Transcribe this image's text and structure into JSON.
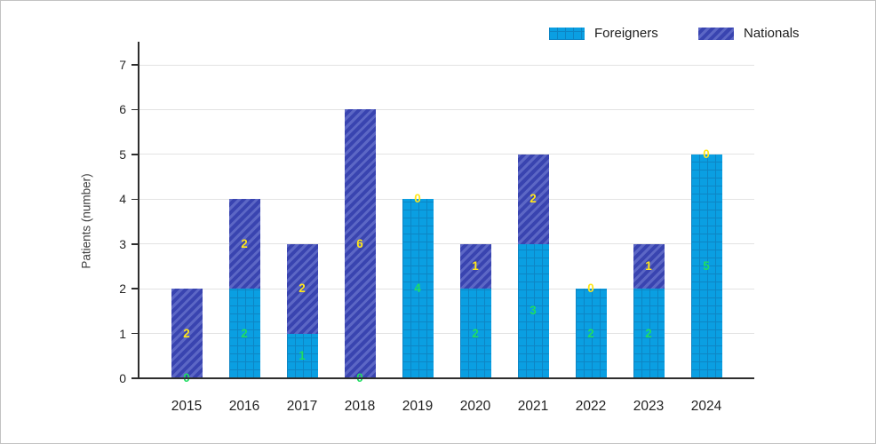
{
  "legend": {
    "items": [
      {
        "label": "Foreigners"
      },
      {
        "label": "Nationals"
      }
    ]
  },
  "chart_data": {
    "type": "bar",
    "stacked": true,
    "title": "",
    "xlabel": "",
    "ylabel": "Patients (number)",
    "categories": [
      "2015",
      "2016",
      "2017",
      "2018",
      "2019",
      "2020",
      "2021",
      "2022",
      "2023",
      "2024"
    ],
    "series": [
      {
        "name": "Foreigners",
        "values": [
          0,
          2,
          1,
          0,
          4,
          2,
          3,
          2,
          2,
          5
        ],
        "color": "#0a9fe2",
        "pattern": "grid",
        "pattern_color": "#0d85c4",
        "value_label_color": "#1fdd62"
      },
      {
        "name": "Nationals",
        "values": [
          2,
          2,
          2,
          6,
          0,
          1,
          2,
          0,
          1,
          0
        ],
        "color": "#3944b0",
        "pattern": "diagonal-stripes",
        "pattern_color": "#5c67c5",
        "value_label_color": "#ffe619"
      }
    ],
    "yticks": [
      0,
      1,
      2,
      3,
      4,
      5,
      6,
      7
    ],
    "ylim": [
      0,
      7.5
    ],
    "grid": "horizontal",
    "legend_position": "top-right",
    "value_labels": "centered-in-segment",
    "colors": {
      "gridline": "#e3e3e3",
      "axis": "#2e2e2e",
      "tick_text": "#262626",
      "frame_border": "#c2c2c2"
    }
  }
}
